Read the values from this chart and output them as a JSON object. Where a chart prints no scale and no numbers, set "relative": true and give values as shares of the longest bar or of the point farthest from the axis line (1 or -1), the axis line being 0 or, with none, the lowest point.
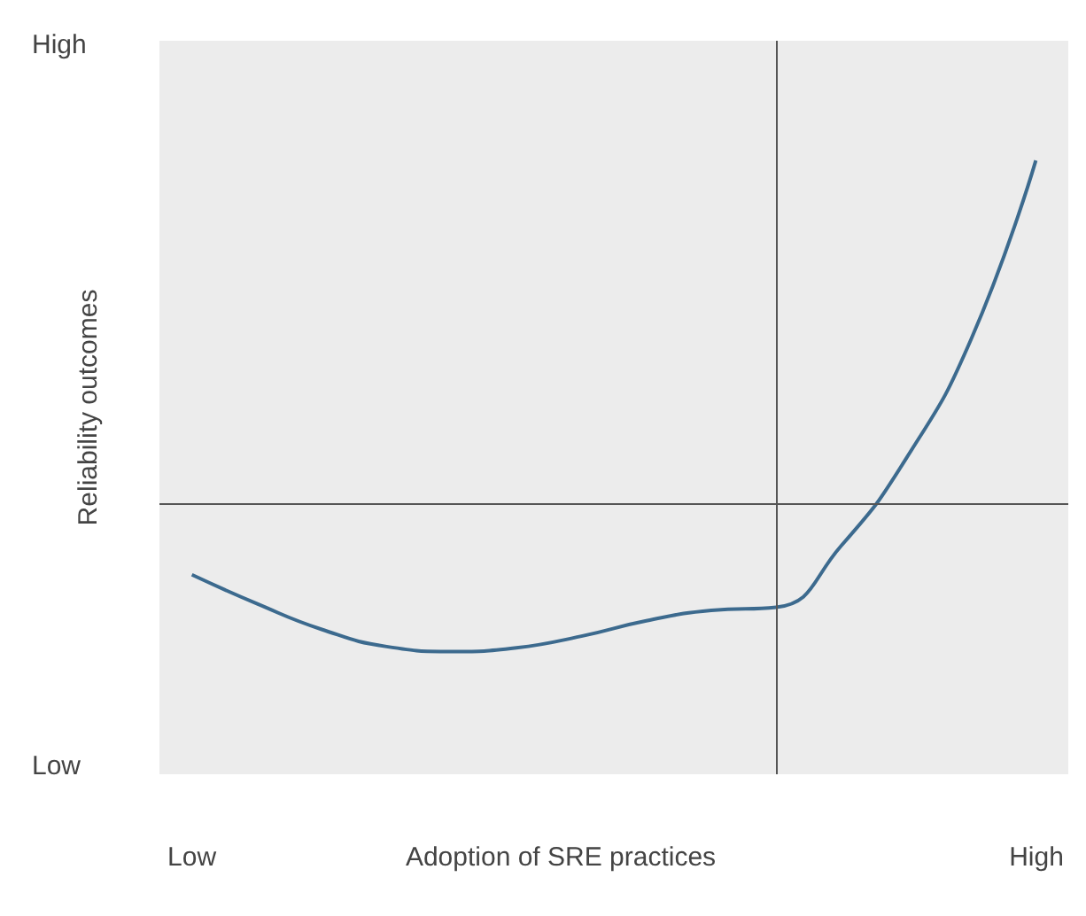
{
  "chart_data": {
    "type": "line",
    "relative": true,
    "ylabel": "Reliability outcomes",
    "categories": [
      null,
      null,
      null,
      null,
      null,
      null,
      null,
      null,
      null,
      null,
      null,
      null,
      null,
      null
    ],
    "series": [
      {
        "color": "#3c6a8e",
        "values": [
          0.325,
          0.278,
          0.236,
          0.208,
          0.2,
          0.206,
          0.225,
          0.25,
          0.267,
          0.272,
          0.372,
          0.514,
          0.708,
          1
        ]
      }
    ],
    "ref_lines": [
      {
        "axis": "y",
        "value": 0.439,
        "color": "#555555"
      }
    ],
    "annotations": [
      "High",
      "Low",
      "Low",
      "Adoption of SRE practices",
      "High"
    ],
    "marker": "none",
    "grid": false
  }
}
